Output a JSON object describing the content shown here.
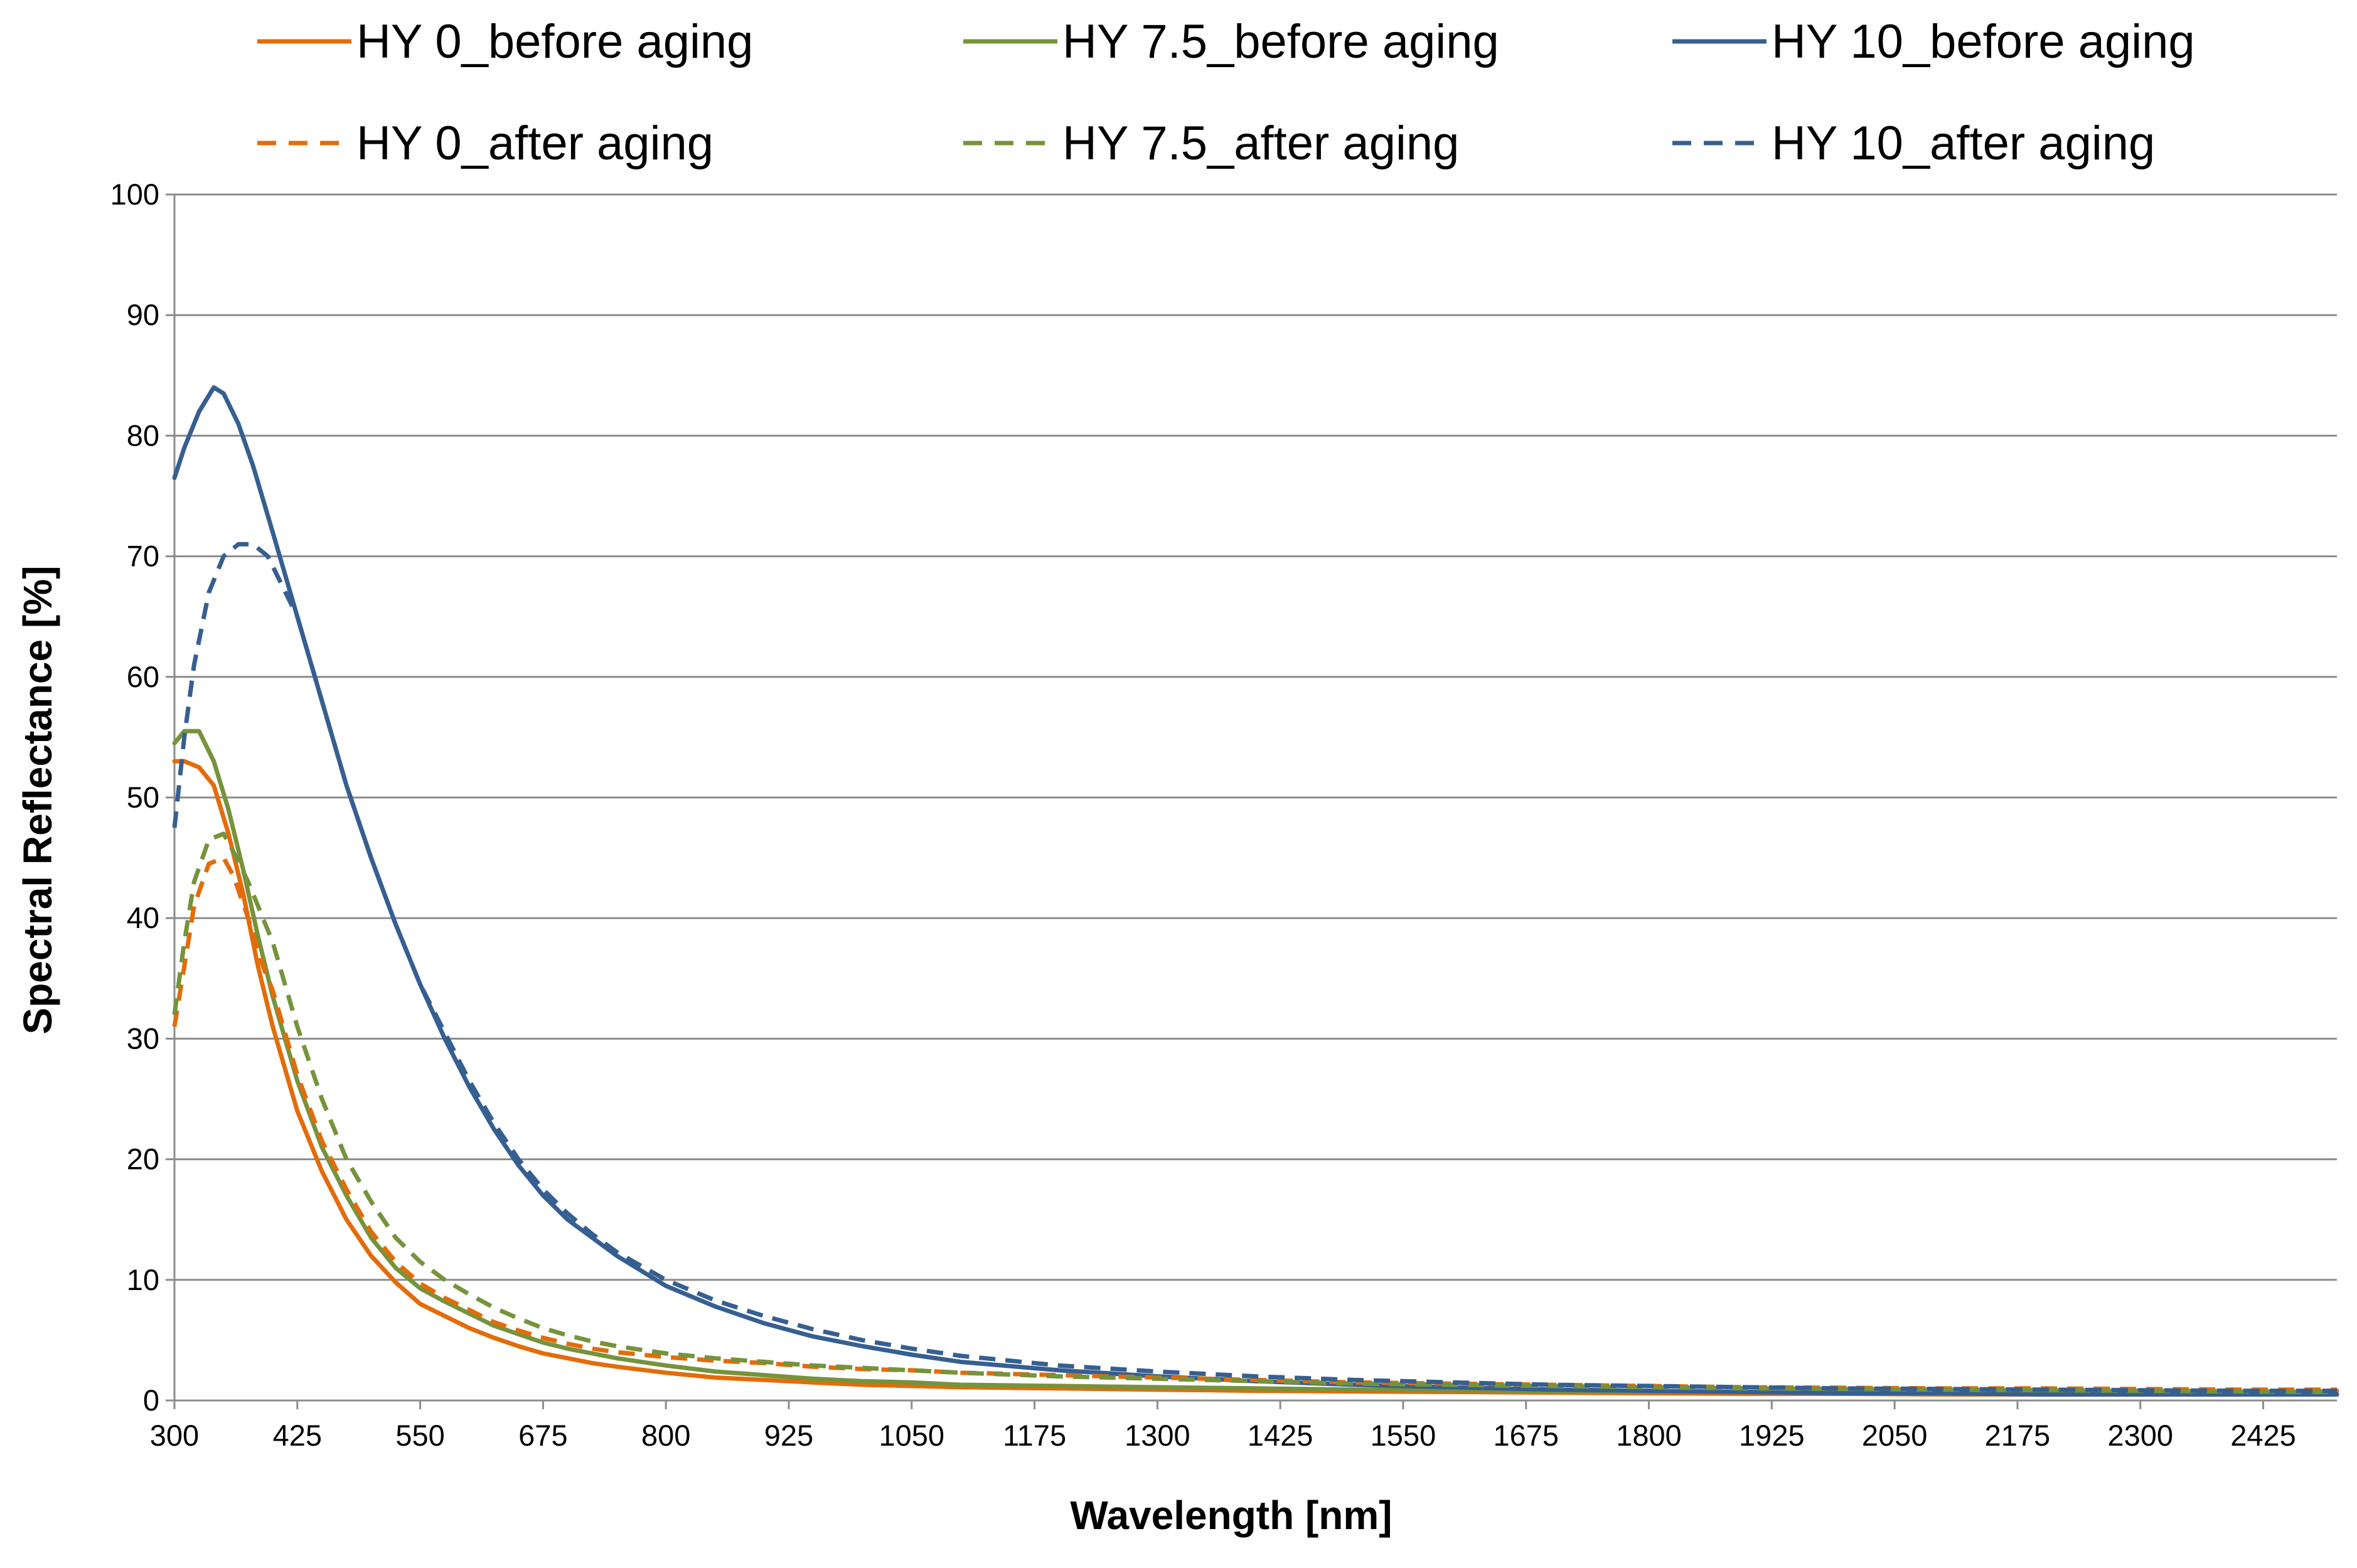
{
  "chart_data": {
    "type": "line",
    "title": "",
    "xlabel": "Wavelength [nm]",
    "ylabel": "Spectral Reflectance [%]",
    "xlim": [
      300,
      2500
    ],
    "ylim": [
      0,
      100
    ],
    "x_ticks": [
      300,
      425,
      550,
      675,
      800,
      925,
      1050,
      1175,
      1300,
      1425,
      1550,
      1675,
      1800,
      1925,
      2050,
      2175,
      2300,
      2425
    ],
    "y_ticks": [
      0,
      10,
      20,
      30,
      40,
      50,
      60,
      70,
      80,
      90,
      100
    ],
    "grid": "horizontal",
    "legend_position": "top",
    "series": [
      {
        "name": "HY 0_before aging",
        "color": "#E36C0A",
        "dash": "solid",
        "x": [
          300,
          310,
          325,
          340,
          355,
          370,
          385,
          400,
          425,
          450,
          475,
          500,
          525,
          550,
          575,
          600,
          625,
          650,
          675,
          700,
          725,
          750,
          800,
          850,
          900,
          950,
          1000,
          1050,
          1100,
          1200,
          1300,
          1400,
          1500,
          1600,
          1700,
          1800,
          1900,
          2000,
          2100,
          2200,
          2300,
          2400,
          2500
        ],
        "y": [
          53,
          53,
          52.5,
          51,
          47,
          42,
          36,
          31,
          24,
          19,
          15,
          12,
          9.8,
          8,
          7,
          6,
          5.2,
          4.5,
          3.9,
          3.5,
          3.1,
          2.8,
          2.3,
          1.9,
          1.7,
          1.5,
          1.3,
          1.2,
          1.1,
          1.0,
          0.9,
          0.8,
          0.75,
          0.7,
          0.65,
          0.6,
          0.55,
          0.55,
          0.5,
          0.5,
          0.5,
          0.5,
          0.8
        ]
      },
      {
        "name": "HY 7.5_before aging",
        "color": "#76933C",
        "dash": "solid",
        "x": [
          300,
          310,
          325,
          340,
          355,
          370,
          385,
          400,
          425,
          450,
          475,
          500,
          525,
          550,
          575,
          600,
          625,
          650,
          675,
          700,
          725,
          750,
          800,
          850,
          900,
          950,
          1000,
          1050,
          1100,
          1200,
          1300,
          1400,
          1500,
          1600,
          1700,
          1800,
          1900,
          2000,
          2100,
          2200,
          2300,
          2400,
          2500
        ],
        "y": [
          54.5,
          55.5,
          55.5,
          53,
          49,
          44,
          38.5,
          33.5,
          26.5,
          21,
          17,
          13.5,
          11,
          9.3,
          8.2,
          7.2,
          6.2,
          5.5,
          4.8,
          4.3,
          3.9,
          3.5,
          2.9,
          2.4,
          2.1,
          1.8,
          1.6,
          1.5,
          1.3,
          1.2,
          1.1,
          1.0,
          0.9,
          0.85,
          0.8,
          0.75,
          0.7,
          0.65,
          0.6,
          0.6,
          0.55,
          0.5,
          0.5
        ]
      },
      {
        "name": "HY 10_before aging",
        "color": "#365F91",
        "dash": "solid",
        "x": [
          300,
          310,
          325,
          340,
          350,
          365,
          380,
          400,
          425,
          450,
          475,
          500,
          525,
          550,
          575,
          600,
          625,
          650,
          675,
          700,
          725,
          750,
          800,
          850,
          900,
          950,
          1000,
          1050,
          1100,
          1200,
          1300,
          1400,
          1500,
          1600,
          1700,
          1800,
          1900,
          2000,
          2100,
          2200,
          2300,
          2400,
          2500
        ],
        "y": [
          76.5,
          79,
          82,
          84,
          83.5,
          81,
          77.5,
          72,
          65,
          58,
          51,
          45,
          39.5,
          34.5,
          30,
          26,
          22.5,
          19.5,
          17,
          15,
          13.5,
          12,
          9.5,
          7.8,
          6.4,
          5.3,
          4.5,
          3.8,
          3.2,
          2.5,
          2.0,
          1.6,
          1.3,
          1.1,
          0.9,
          0.8,
          0.7,
          0.6,
          0.6,
          0.5,
          0.5,
          0.5,
          0.5
        ]
      },
      {
        "name": "HY 0_after aging",
        "color": "#E36C0A",
        "dash": "dashed",
        "x": [
          300,
          310,
          320,
          335,
          350,
          360,
          375,
          390,
          400,
          425,
          450,
          475,
          500,
          525,
          550,
          575,
          600,
          625,
          650,
          675,
          700,
          725,
          750,
          800,
          850,
          900,
          950,
          1000,
          1050,
          1100,
          1200,
          1300,
          1400,
          1500,
          1600,
          1700,
          1800,
          1900,
          2000,
          2100,
          2200,
          2300,
          2400,
          2500
        ],
        "y": [
          31,
          36,
          41,
          44.5,
          45,
          43.5,
          40,
          36,
          34,
          27,
          21.5,
          17.5,
          14,
          11.5,
          9.7,
          8.5,
          7.5,
          6.5,
          5.8,
          5.2,
          4.7,
          4.3,
          4,
          3.6,
          3.3,
          3.1,
          2.8,
          2.6,
          2.5,
          2.3,
          2.1,
          1.9,
          1.7,
          1.5,
          1.4,
          1.3,
          1.2,
          1.1,
          1.05,
          1.0,
          1.0,
          0.95,
          0.9,
          0.9
        ]
      },
      {
        "name": "HY 7.5_after aging",
        "color": "#76933C",
        "dash": "dashed",
        "x": [
          300,
          310,
          320,
          335,
          350,
          360,
          375,
          390,
          400,
          425,
          450,
          475,
          500,
          525,
          550,
          575,
          600,
          625,
          650,
          675,
          700,
          725,
          750,
          800,
          850,
          900,
          950,
          1000,
          1050,
          1100,
          1200,
          1300,
          1400,
          1500,
          1600,
          1700,
          1800,
          1900,
          2000,
          2100,
          2200,
          2300,
          2400,
          2500
        ],
        "y": [
          32,
          38,
          43,
          46.5,
          47,
          45.5,
          43,
          40,
          38,
          31,
          25,
          20,
          16.5,
          13.5,
          11.5,
          10,
          8.8,
          7.7,
          6.8,
          6.0,
          5.4,
          4.9,
          4.5,
          3.9,
          3.5,
          3.2,
          2.9,
          2.7,
          2.5,
          2.3,
          2.0,
          1.8,
          1.6,
          1.4,
          1.3,
          1.2,
          1.1,
          1.0,
          0.95,
          0.9,
          0.85,
          0.8,
          0.75,
          0.7
        ]
      },
      {
        "name": "HY 10_after aging",
        "color": "#365F91",
        "dash": "dashed",
        "x": [
          300,
          310,
          320,
          335,
          350,
          365,
          380,
          395,
          410,
          425,
          450,
          475,
          500,
          525,
          550,
          575,
          600,
          625,
          650,
          675,
          700,
          725,
          750,
          800,
          850,
          900,
          950,
          1000,
          1050,
          1100,
          1200,
          1300,
          1400,
          1500,
          1600,
          1700,
          1800,
          1900,
          2000,
          2100,
          2200,
          2300,
          2400,
          2500
        ],
        "y": [
          47.5,
          55,
          61,
          67,
          70,
          71,
          71,
          70,
          67.5,
          65,
          58,
          51,
          45,
          39.5,
          34.5,
          30.5,
          26.5,
          23,
          20,
          17.5,
          15.5,
          13.8,
          12.3,
          10,
          8.3,
          7,
          5.9,
          5,
          4.3,
          3.7,
          2.9,
          2.4,
          2.0,
          1.7,
          1.5,
          1.3,
          1.2,
          1.1,
          1.0,
          0.95,
          0.9,
          0.85,
          0.8,
          0.8
        ]
      }
    ]
  }
}
